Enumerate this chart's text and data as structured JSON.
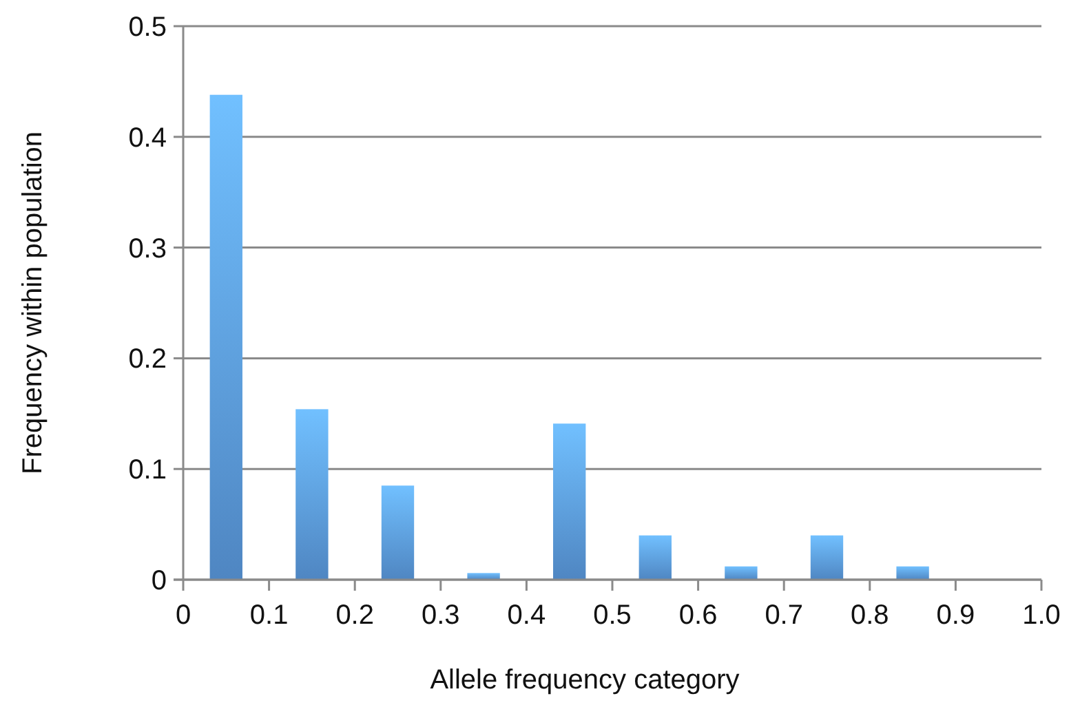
{
  "chart_data": {
    "type": "histogram",
    "xlabel": "Allele frequency category",
    "ylabel": "Frequency within population",
    "bins": [
      0,
      0.1,
      0.2,
      0.3,
      0.4,
      0.5,
      0.6,
      0.7,
      0.8,
      0.9,
      1.0
    ],
    "values": [
      0.438,
      0.154,
      0.085,
      0.006,
      0.141,
      0.04,
      0.012,
      0.04,
      0.012,
      0
    ],
    "color": "#5b9be0",
    "xlim": [
      0,
      1.0
    ],
    "xticks": [
      0,
      0.1,
      0.2,
      0.3,
      0.4,
      0.5,
      0.6,
      0.7,
      0.8,
      0.9,
      {
        "value": 1.0,
        "label": "1.0"
      }
    ],
    "ylim": [
      0,
      0.5
    ],
    "yticks": [
      0,
      0.1,
      0.2,
      0.3,
      0.4,
      0.5
    ],
    "grid": "y"
  }
}
